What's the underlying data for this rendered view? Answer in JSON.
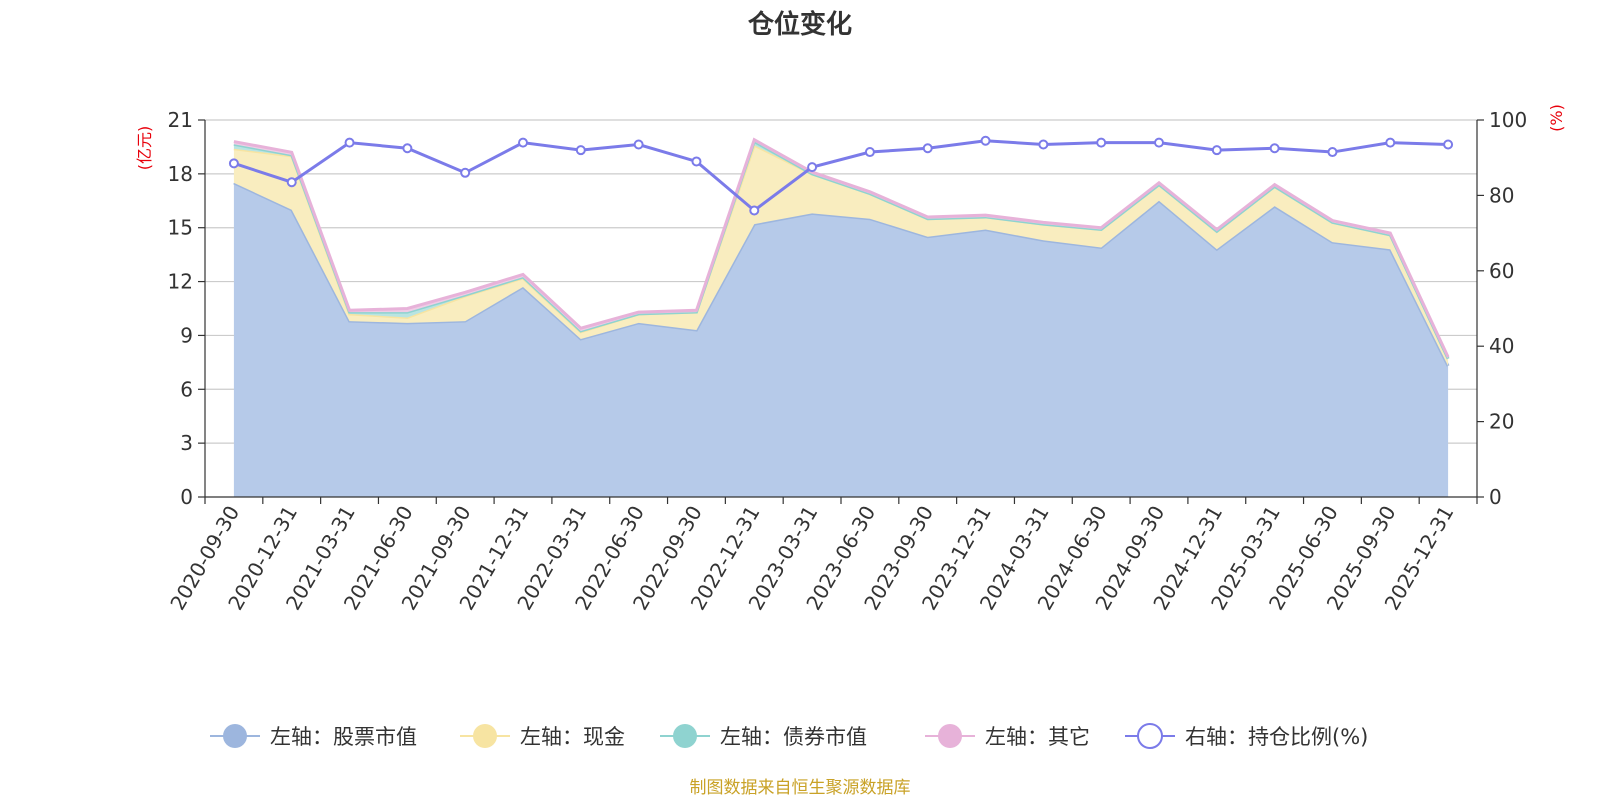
{
  "chart_data": {
    "type": "area",
    "title": "仓位变化",
    "left_axis": {
      "unit": "(亿元)",
      "ylim": [
        0,
        21
      ],
      "ticks": [
        "0",
        "3",
        "6",
        "9",
        "12",
        "15",
        "18",
        "21"
      ]
    },
    "right_axis": {
      "unit": "(%)",
      "ylim": [
        0,
        100
      ],
      "ticks": [
        "0",
        "20",
        "40",
        "60",
        "80",
        "100"
      ]
    },
    "categories": [
      "2020-09-30",
      "2020-12-31",
      "2021-03-31",
      "2021-06-30",
      "2021-09-30",
      "2021-12-31",
      "2022-03-31",
      "2022-06-30",
      "2022-09-30",
      "2022-12-31",
      "2023-03-31",
      "2023-06-30",
      "2023-09-30",
      "2023-12-31",
      "2024-03-31",
      "2024-06-30",
      "2024-09-30",
      "2024-12-31",
      "2025-03-31",
      "2025-06-30",
      "2025-09-30",
      "2025-12-31"
    ],
    "series": [
      {
        "name": "左轴：股票市值",
        "axis": "left",
        "kind": "stacked-area",
        "color": "#9db6de",
        "fill": "#b6cae9",
        "values": [
          17.5,
          16.0,
          9.8,
          9.7,
          9.8,
          11.7,
          8.8,
          9.7,
          9.3,
          15.2,
          15.8,
          15.5,
          14.5,
          14.9,
          14.3,
          13.9,
          16.5,
          13.8,
          16.2,
          14.2,
          13.8,
          7.3
        ]
      },
      {
        "name": "左轴：现金",
        "axis": "left",
        "kind": "stacked-area",
        "color": "#f7e4a2",
        "fill": "#f9edbf",
        "values": [
          1.9,
          3.0,
          0.4,
          0.3,
          1.4,
          0.5,
          0.4,
          0.5,
          1.0,
          4.4,
          2.2,
          1.4,
          1.0,
          0.7,
          0.9,
          1.0,
          0.9,
          1.0,
          1.1,
          1.1,
          0.8,
          0.4
        ]
      },
      {
        "name": "左轴：债券市值",
        "axis": "left",
        "kind": "stacked-area",
        "color": "#8fd3d0",
        "fill": "#b9e4e2",
        "values": [
          0.25,
          0.05,
          0.1,
          0.3,
          0.05,
          0.05,
          0.05,
          0.0,
          0.0,
          0.2,
          0.0,
          0.0,
          0.0,
          0.0,
          0.0,
          0.0,
          0.0,
          0.0,
          0.0,
          0.0,
          0.0,
          0.0
        ]
      },
      {
        "name": "左轴：其它",
        "axis": "left",
        "kind": "stacked-area",
        "color": "#e7b2d9",
        "fill": "#efcde6",
        "values": [
          0.15,
          0.15,
          0.1,
          0.2,
          0.15,
          0.15,
          0.15,
          0.1,
          0.1,
          0.1,
          0.1,
          0.1,
          0.1,
          0.1,
          0.1,
          0.1,
          0.1,
          0.1,
          0.1,
          0.1,
          0.1,
          0.1
        ]
      },
      {
        "name": "右轴：持仓比例(%)",
        "axis": "right",
        "kind": "line",
        "color": "#7b7be9",
        "values": [
          88.5,
          83.5,
          94.0,
          92.5,
          86.0,
          94.0,
          92.0,
          93.5,
          89.0,
          76.0,
          87.5,
          91.5,
          92.5,
          94.5,
          93.5,
          94.0,
          94.0,
          92.0,
          92.5,
          91.5,
          94.0,
          93.5
        ]
      }
    ],
    "grid": true,
    "legend_position": "bottom"
  },
  "footer": {
    "source": "制图数据来自恒生聚源数据库"
  }
}
